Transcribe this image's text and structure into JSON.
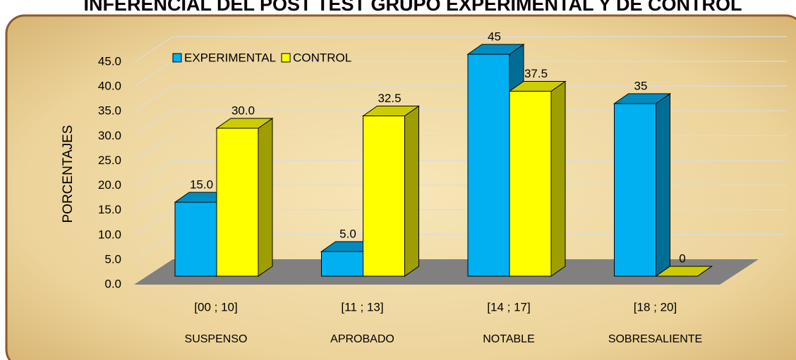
{
  "chart_data": {
    "type": "bar3d",
    "title": "INFERENCIAL DEL POST TEST GRUPO EXPERIMENTAL Y DE CONTROL",
    "ylabel": "PORCENTAJES",
    "categories": [
      "[00 ; 10]",
      "[11 ; 13]",
      "[14 ; 17]",
      "[18 ; 20]"
    ],
    "category_names": [
      "SUSPENSO",
      "APROBADO",
      "NOTABLE",
      "SOBRESALIENTE"
    ],
    "series": [
      {
        "name": "EXPERIMENTAL",
        "color": "#00b0f0",
        "values": [
          15,
          5,
          45,
          35
        ],
        "value_labels": [
          "15.0",
          "5.0",
          "45",
          "35"
        ]
      },
      {
        "name": "CONTROL",
        "color": "#ffff00",
        "values": [
          30,
          32.5,
          37.5,
          0
        ],
        "value_labels": [
          "30.0",
          "32.5",
          "37.5",
          "0"
        ]
      }
    ],
    "ylim": [
      0,
      45
    ],
    "yticks": [
      {
        "value": 0,
        "label": "0.0"
      },
      {
        "value": 5,
        "label": "5.0"
      },
      {
        "value": 10,
        "label": "10.0"
      },
      {
        "value": 15,
        "label": "15.0"
      },
      {
        "value": 20,
        "label": "20.0"
      },
      {
        "value": 25,
        "label": "25.0"
      },
      {
        "value": 30,
        "label": "30.0"
      },
      {
        "value": 35,
        "label": "35.0"
      },
      {
        "value": 40,
        "label": "40.0"
      },
      {
        "value": 45,
        "label": "45.0"
      }
    ],
    "grid": true,
    "legend": "top-left"
  }
}
